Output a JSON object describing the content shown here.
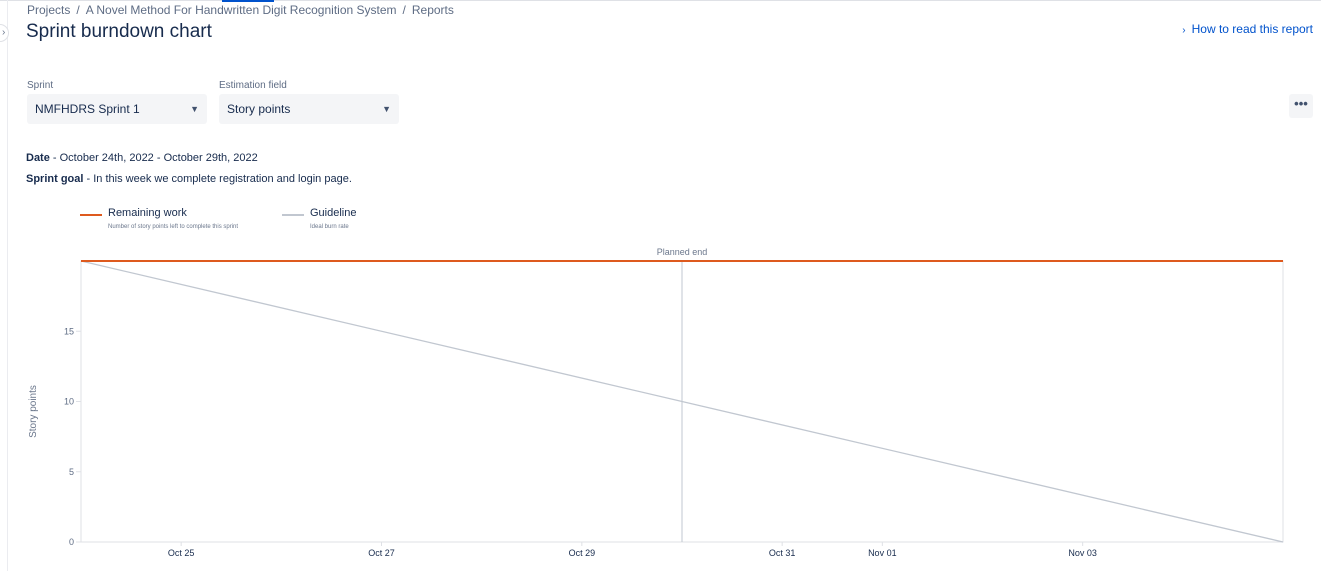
{
  "breadcrumb": {
    "items": [
      "Projects",
      "A Novel Method For Handwritten Digit Recognition System",
      "Reports"
    ],
    "separator": "/"
  },
  "page": {
    "title": "Sprint burndown chart",
    "help_link": "How to read this report"
  },
  "filters": {
    "sprint_label": "Sprint",
    "sprint_value": "NMFHDRS Sprint 1",
    "estimation_label": "Estimation field",
    "estimation_value": "Story points"
  },
  "sprint_info": {
    "date_label": "Date",
    "date_value": "October 24th, 2022 - October 29th, 2022",
    "goal_label": "Sprint goal",
    "goal_value": "In this week we complete registration and login page.",
    "dash": " - "
  },
  "legend": [
    {
      "title": "Remaining work",
      "desc": "Number of story points left to complete this sprint",
      "color": "#de5a1e"
    },
    {
      "title": "Guideline",
      "desc": "Ideal burn rate",
      "color": "#c1c7d0"
    }
  ],
  "chart_data": {
    "type": "line",
    "ylabel": "Story points",
    "ylim": [
      0,
      20
    ],
    "yticks": [
      0,
      5,
      10,
      15
    ],
    "xlim": [
      "2022-10-24",
      "2022-11-05"
    ],
    "xticks": [
      {
        "date": "2022-10-25",
        "label": "Oct 25"
      },
      {
        "date": "2022-10-27",
        "label": "Oct 27"
      },
      {
        "date": "2022-10-29",
        "label": "Oct 29"
      },
      {
        "date": "2022-10-31",
        "label": "Oct 31"
      },
      {
        "date": "2022-11-01",
        "label": "Nov 01"
      },
      {
        "date": "2022-11-03",
        "label": "Nov 03"
      }
    ],
    "planned_end": {
      "date": "2022-10-30",
      "label": "Planned end"
    },
    "series": [
      {
        "name": "Remaining work",
        "color": "#de5a1e",
        "points": [
          {
            "x": "2022-10-24",
            "y": 20
          },
          {
            "x": "2022-11-05",
            "y": 20
          }
        ]
      },
      {
        "name": "Guideline",
        "color": "#c1c7d0",
        "points": [
          {
            "x": "2022-10-24",
            "y": 20
          },
          {
            "x": "2022-11-05",
            "y": 0
          }
        ]
      }
    ]
  }
}
